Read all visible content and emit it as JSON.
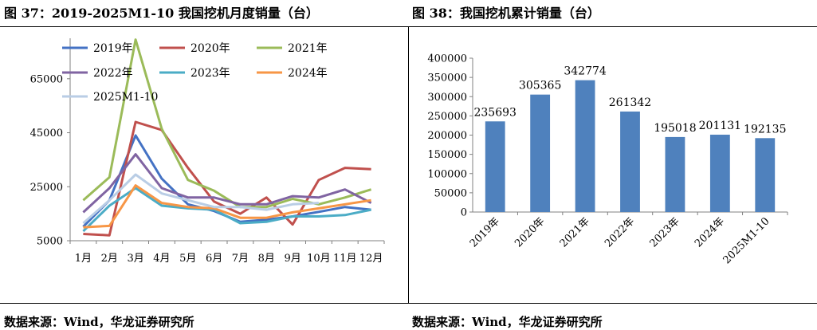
{
  "left": {
    "title": "图 37：2019-2025M1-10 我国挖机月度销量（台）",
    "source": "数据来源：Wind，华龙证券研究所"
  },
  "right": {
    "title": "图 38：我国挖机累计销量（台）",
    "source": "数据来源：Wind，华龙证券研究所"
  },
  "chart_data": [
    {
      "type": "line",
      "title": "",
      "xlabel": "",
      "ylabel": "",
      "categories": [
        "1月",
        "2月",
        "3月",
        "4月",
        "5月",
        "6月",
        "7月",
        "8月",
        "9月",
        "10月",
        "11月",
        "12月"
      ],
      "yticks": [
        "5000",
        "25000",
        "45000",
        "65000"
      ],
      "ylim": [
        5000,
        80000
      ],
      "grid": false,
      "legend_position": "top",
      "series": [
        {
          "name": "2019年",
          "color": "#4472c4",
          "values": [
            10200,
            20000,
            44000,
            28000,
            18500,
            16000,
            12000,
            12800,
            14000,
            15700,
            17500,
            16500
          ]
        },
        {
          "name": "2020年",
          "color": "#c0504d",
          "values": [
            7500,
            7000,
            49000,
            46000,
            32000,
            19500,
            15000,
            21000,
            11000,
            27500,
            32000,
            31500
          ]
        },
        {
          "name": "2021年",
          "color": "#9bbb59",
          "values": [
            20000,
            28500,
            79500,
            46500,
            27500,
            23500,
            17500,
            17500,
            20500,
            18500,
            21000,
            24000
          ]
        },
        {
          "name": "2022年",
          "color": "#8064a2",
          "values": [
            15500,
            24500,
            37000,
            24500,
            21000,
            21000,
            18500,
            18500,
            21500,
            21000,
            24000,
            19000
          ]
        },
        {
          "name": "2023年",
          "color": "#4bacc6",
          "values": [
            8500,
            18000,
            24500,
            18000,
            17000,
            16500,
            11500,
            12000,
            14000,
            14000,
            14500,
            16500
          ]
        },
        {
          "name": "2024年",
          "color": "#f79646",
          "values": [
            10000,
            10500,
            25500,
            19000,
            17500,
            17000,
            13500,
            13500,
            15500,
            17000,
            18500,
            20000
          ]
        },
        {
          "name": "2025M1-10",
          "color": "#b9cde5",
          "values": [
            11500,
            20000,
            29500,
            22500,
            20000,
            17500,
            17500,
            16500,
            18500,
            19000,
            null,
            null
          ]
        }
      ]
    },
    {
      "type": "bar",
      "title": "",
      "xlabel": "",
      "ylabel": "",
      "categories": [
        "2019年",
        "2020年",
        "2021年",
        "2022年",
        "2023年",
        "2024年",
        "2025M1-10"
      ],
      "values": [
        235693,
        305365,
        342774,
        261342,
        195018,
        201131,
        192135
      ],
      "value_labels": [
        "235693",
        "305365",
        "342774",
        "261342",
        "195018",
        "201131",
        "192135"
      ],
      "yticks": [
        "0",
        "50000",
        "100000",
        "150000",
        "200000",
        "250000",
        "300000",
        "350000",
        "400000"
      ],
      "ylim": [
        0,
        400000
      ],
      "bar_color": "#4f81bd",
      "grid": false
    }
  ]
}
